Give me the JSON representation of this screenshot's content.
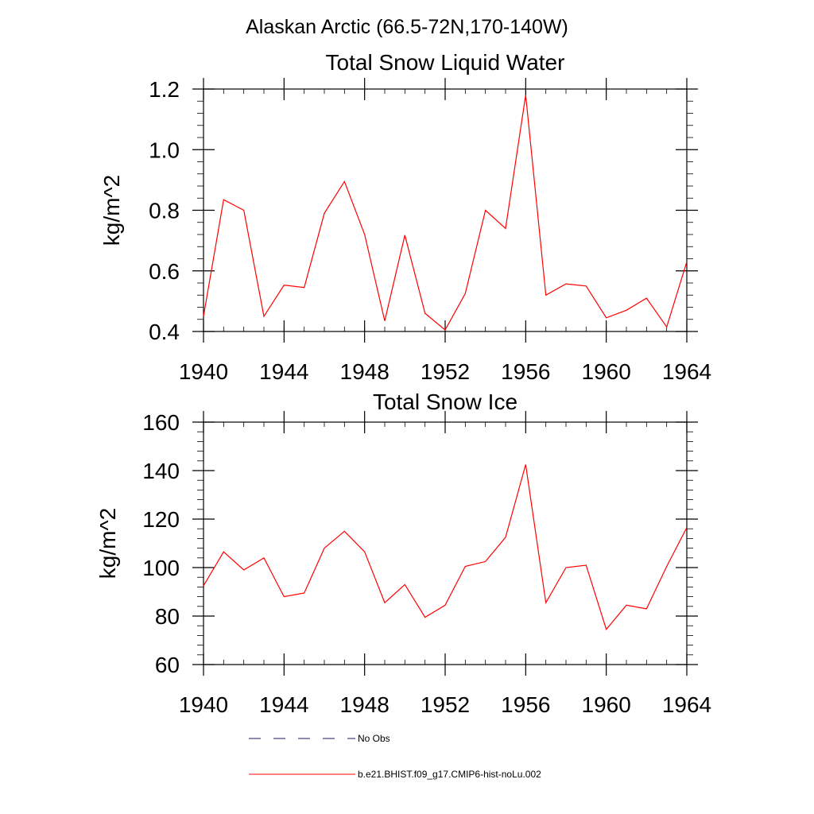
{
  "figure": {
    "suptitle": "Alaskan Arctic (66.5-72N,170-140W)"
  },
  "legend": {
    "entries": [
      {
        "label": "No Obs",
        "style": "dashed",
        "color": "#1a1a5a"
      },
      {
        "label": "b.e21.BHIST.f09_g17.CMIP6-hist-noLu.002",
        "style": "solid",
        "color": "#ff0000"
      }
    ]
  },
  "chart_data": [
    {
      "type": "line",
      "title": "Total Snow Liquid Water",
      "ylabel": "kg/m^2",
      "xlim": [
        1940,
        1964
      ],
      "ylim": [
        0.4,
        1.2
      ],
      "xticks": [
        1940,
        1944,
        1948,
        1952,
        1956,
        1960,
        1964
      ],
      "xtick_labels": [
        "1940",
        "1944",
        "1948",
        "1952",
        "1956",
        "1960",
        "1964"
      ],
      "yticks": [
        0.4,
        0.6,
        0.8,
        1.0,
        1.2
      ],
      "ytick_labels": [
        "0.4",
        "0.6",
        "0.8",
        "1.0",
        "1.2"
      ],
      "grid": false,
      "x": [
        1940,
        1941,
        1942,
        1943,
        1944,
        1945,
        1946,
        1947,
        1948,
        1949,
        1950,
        1951,
        1952,
        1953,
        1954,
        1955,
        1956,
        1957,
        1958,
        1959,
        1960,
        1961,
        1962,
        1963,
        1964
      ],
      "series": [
        {
          "name": "b.e21.BHIST.f09_g17.CMIP6-hist-noLu.002",
          "color": "#ff0000",
          "values": [
            0.45,
            0.835,
            0.8,
            0.45,
            0.553,
            0.545,
            0.79,
            0.895,
            0.72,
            0.435,
            0.718,
            0.46,
            0.405,
            0.525,
            0.8,
            0.74,
            1.18,
            0.52,
            0.557,
            0.55,
            0.445,
            0.47,
            0.51,
            0.415,
            0.63
          ]
        }
      ]
    },
    {
      "type": "line",
      "title": "Total Snow Ice",
      "ylabel": "kg/m^2",
      "xlim": [
        1940,
        1964
      ],
      "ylim": [
        60,
        160
      ],
      "xticks": [
        1940,
        1944,
        1948,
        1952,
        1956,
        1960,
        1964
      ],
      "xtick_labels": [
        "1940",
        "1944",
        "1948",
        "1952",
        "1956",
        "1960",
        "1964"
      ],
      "yticks": [
        60,
        80,
        100,
        120,
        140,
        160
      ],
      "ytick_labels": [
        "60",
        "80",
        "100",
        "120",
        "140",
        "160"
      ],
      "grid": false,
      "x": [
        1940,
        1941,
        1942,
        1943,
        1944,
        1945,
        1946,
        1947,
        1948,
        1949,
        1950,
        1951,
        1952,
        1953,
        1954,
        1955,
        1956,
        1957,
        1958,
        1959,
        1960,
        1961,
        1962,
        1963,
        1964
      ],
      "series": [
        {
          "name": "b.e21.BHIST.f09_g17.CMIP6-hist-noLu.002",
          "color": "#ff0000",
          "values": [
            92.5,
            106.5,
            99.0,
            104.0,
            88.0,
            89.5,
            108.0,
            115.0,
            106.5,
            85.5,
            93.0,
            79.5,
            84.5,
            100.5,
            102.5,
            112.5,
            142.5,
            85.5,
            100.0,
            101.0,
            74.5,
            84.5,
            83.0,
            100.5,
            116.5
          ]
        }
      ]
    }
  ]
}
